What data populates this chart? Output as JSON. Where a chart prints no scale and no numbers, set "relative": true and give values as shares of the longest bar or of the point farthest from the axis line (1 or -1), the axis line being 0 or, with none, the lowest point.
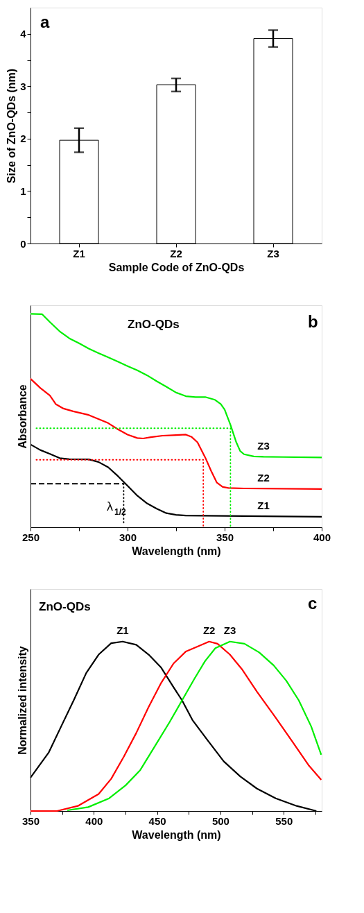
{
  "chart_data": [
    {
      "type": "bar",
      "categories": [
        "Z1",
        "Z2",
        "Z3"
      ],
      "values": [
        1.97,
        3.03,
        3.91
      ],
      "color": "#ffffff",
      "errors": [
        [
          1.74,
          2.2
        ],
        [
          2.9,
          3.15
        ],
        [
          3.75,
          4.07
        ]
      ],
      "xlabel": "Sample Code of ZnO-QDs",
      "ylabel": "Size of ZnO-QDs (nm)",
      "ylim": [
        0,
        4.5
      ],
      "yticks": [
        0,
        {
          "value": 0.5,
          "label": null
        },
        1,
        {
          "value": 1.5,
          "label": null
        },
        2,
        {
          "value": 2.5,
          "label": null
        },
        3,
        {
          "value": 3.5,
          "label": null
        },
        4
      ],
      "annotations": [
        "a"
      ],
      "grid": false
    },
    {
      "type": "line",
      "relative": true,
      "xlabel": "Wavelength (nm)",
      "ylabel": "Absorbance",
      "xlim": [
        250,
        400
      ],
      "xticks": [
        250,
        {
          "value": 275,
          "label": null
        },
        300,
        {
          "value": 325,
          "label": null
        },
        350,
        {
          "value": 375,
          "label": null
        },
        400
      ],
      "series": [
        {
          "name": "Z3",
          "color": "#00ee00",
          "x": [
            250,
            256,
            260,
            265,
            270,
            275,
            280,
            285,
            290,
            295,
            300,
            305,
            310,
            315,
            320,
            325,
            330,
            335,
            340,
            345,
            348,
            350,
            353,
            356,
            358,
            360,
            365,
            370,
            380,
            400
          ],
          "values": [
            1.0,
            0.998,
            0.961,
            0.918,
            0.885,
            0.862,
            0.837,
            0.816,
            0.796,
            0.776,
            0.755,
            0.735,
            0.712,
            0.684,
            0.658,
            0.631,
            0.614,
            0.61,
            0.61,
            0.597,
            0.577,
            0.551,
            0.48,
            0.398,
            0.357,
            0.342,
            0.332,
            0.33,
            0.329,
            0.327
          ]
        },
        {
          "name": "Z2",
          "color": "#ff0000",
          "x": [
            250,
            255,
            260,
            263,
            267,
            272,
            280,
            285,
            290,
            295,
            300,
            305,
            308,
            312,
            318,
            325,
            330,
            333,
            336,
            340,
            343,
            346,
            349,
            352,
            360,
            400
          ],
          "values": [
            0.696,
            0.653,
            0.617,
            0.577,
            0.556,
            0.543,
            0.526,
            0.507,
            0.488,
            0.459,
            0.434,
            0.418,
            0.416,
            0.422,
            0.429,
            0.432,
            0.434,
            0.423,
            0.398,
            0.327,
            0.265,
            0.209,
            0.189,
            0.184,
            0.182,
            0.179
          ]
        },
        {
          "name": "Z1",
          "color": "#000000",
          "x": [
            250,
            255,
            260,
            265,
            270,
            280,
            285,
            290,
            295,
            300,
            305,
            310,
            315,
            320,
            325,
            330,
            340,
            400
          ],
          "values": [
            0.388,
            0.362,
            0.344,
            0.324,
            0.319,
            0.318,
            0.306,
            0.281,
            0.24,
            0.194,
            0.148,
            0.112,
            0.087,
            0.066,
            0.058,
            0.055,
            0.054,
            0.049
          ]
        },
        {
          "type": "line",
          "color": "#00ee00",
          "line_style": "dotted",
          "x": [
            253,
            353,
            353
          ],
          "values": [
            0.464,
            0.464,
            0
          ]
        },
        {
          "type": "line",
          "color": "#ff0000",
          "line_style": "dotted",
          "x": [
            253,
            339,
            339
          ],
          "values": [
            0.316,
            0.316,
            0
          ]
        },
        {
          "type": "line",
          "color": "#000000",
          "line_style": "dashed",
          "x": [
            250,
            298
          ],
          "values": [
            0.204,
            0.204
          ]
        },
        {
          "type": "line",
          "color": "#000000",
          "line_style": "dotted",
          "x": [
            298,
            298
          ],
          "values": [
            0.204,
            0.022
          ]
        }
      ],
      "annotations": [
        "ZnO-QDs",
        "b",
        "λ$_{1/2}$"
      ],
      "grid": false
    },
    {
      "type": "line",
      "relative": true,
      "xlabel": "Wavelength (nm)",
      "ylabel": "Normalized intensity",
      "xlim": [
        350,
        580
      ],
      "xticks": [
        350,
        {
          "value": 375,
          "label": null
        },
        400,
        {
          "value": 425,
          "label": null
        },
        450,
        {
          "value": 475,
          "label": null
        },
        500,
        {
          "value": 525,
          "label": null
        },
        550,
        {
          "value": 575,
          "label": null
        }
      ],
      "series": [
        {
          "name": "Z1",
          "color": "#000000",
          "x": [
            350,
            364.3,
            374.2,
            384.1,
            394,
            403.8,
            413.7,
            422.8,
            433.5,
            443.3,
            453.2,
            463,
            469.7,
            477.9,
            489.4,
            502.6,
            515.8,
            528.9,
            543.7,
            560.2,
            575.8
          ],
          "values": [
            0.197,
            0.344,
            0.499,
            0.653,
            0.814,
            0.923,
            0.99,
            1.0,
            0.981,
            0.923,
            0.846,
            0.73,
            0.653,
            0.537,
            0.422,
            0.293,
            0.203,
            0.132,
            0.075,
            0.03,
            0
          ]
        },
        {
          "name": "Z2",
          "color": "#ff0000",
          "x": [
            350,
            370.9,
            387.4,
            403.8,
            413.7,
            423.6,
            433.5,
            443.3,
            453.2,
            463,
            472.8,
            481.2,
            491.1,
            497.7,
            507.5,
            517.4,
            528.9,
            543.7,
            556.9,
            570,
            579.6
          ],
          "values": [
            0,
            0,
            0.03,
            0.1,
            0.19,
            0.319,
            0.46,
            0.614,
            0.756,
            0.871,
            0.942,
            0.968,
            1.0,
            0.987,
            0.923,
            0.833,
            0.704,
            0.55,
            0.409,
            0.267,
            0.184
          ]
        },
        {
          "name": "Z3",
          "color": "#00ee00",
          "x": [
            379.1,
            395.6,
            412.1,
            425.2,
            436.7,
            448.3,
            459.8,
            469.7,
            479.5,
            487.8,
            496,
            507.5,
            519,
            530.6,
            542.1,
            552,
            561.9,
            571.7,
            579.6
          ],
          "values": [
            0.004,
            0.023,
            0.075,
            0.152,
            0.242,
            0.383,
            0.524,
            0.653,
            0.781,
            0.884,
            0.961,
            1.0,
            0.987,
            0.936,
            0.859,
            0.769,
            0.653,
            0.499,
            0.332
          ]
        }
      ],
      "annotations": [
        "ZnO-QDs",
        "c"
      ],
      "grid": false
    }
  ]
}
